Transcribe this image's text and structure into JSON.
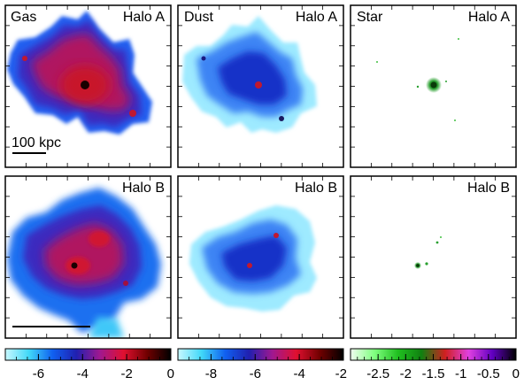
{
  "panels": [
    {
      "id": "gas-a",
      "component": "Gas",
      "halo": "Halo A",
      "colormap": "gas"
    },
    {
      "id": "dust-a",
      "component": "Dust",
      "halo": "Halo A",
      "colormap": "dust"
    },
    {
      "id": "star-a",
      "component": "Star",
      "halo": "Halo A",
      "colormap": "star"
    },
    {
      "id": "gas-b",
      "component": "",
      "halo": "Halo B",
      "colormap": "gas"
    },
    {
      "id": "dust-b",
      "component": "",
      "halo": "Halo B",
      "colormap": "dust"
    },
    {
      "id": "star-b",
      "component": "",
      "halo": "Halo B",
      "colormap": "star"
    }
  ],
  "scalebar": {
    "label": "100 kpc"
  },
  "colorbars": [
    {
      "id": "gas-colorbar",
      "ticks": [
        "-6",
        "-4",
        "-2",
        "0"
      ],
      "values": [
        -6,
        -4,
        -2,
        0
      ],
      "range": [
        -7.5,
        0
      ],
      "colors": [
        "#c8f8ff",
        "#40d8f8",
        "#1060f0",
        "#2020b0",
        "#a01890",
        "#e01030",
        "#700000",
        "#000000"
      ]
    },
    {
      "id": "dust-colorbar",
      "ticks": [
        "-8",
        "-6",
        "-4",
        "-2"
      ],
      "values": [
        -8,
        -6,
        -4,
        -2
      ],
      "range": [
        -9.5,
        -2
      ],
      "colors": [
        "#c8f8ff",
        "#40d8f8",
        "#1060f0",
        "#2020b0",
        "#a01890",
        "#e01030",
        "#700000",
        "#000000"
      ]
    },
    {
      "id": "star-colorbar",
      "ticks": [
        "-2.5",
        "-2",
        "-1.5",
        "-1",
        "-0.5",
        "0"
      ],
      "values": [
        -2.5,
        -2,
        -1.5,
        -1,
        -0.5,
        0
      ],
      "range": [
        -3,
        0
      ],
      "colors": [
        "#f0fff0",
        "#80ff80",
        "#20c020",
        "#108010",
        "#d02020",
        "#e040e0",
        "#6000c0",
        "#000000"
      ]
    }
  ],
  "colors": {
    "gas_core": "#c01838",
    "gas_mid": "#6020b0",
    "gas_outer": "#1c70f0",
    "dust_outer": "#9eeaff",
    "dust_mid": "#3c84f4",
    "dust_core": "#1830c8",
    "star": "#2aa030"
  }
}
